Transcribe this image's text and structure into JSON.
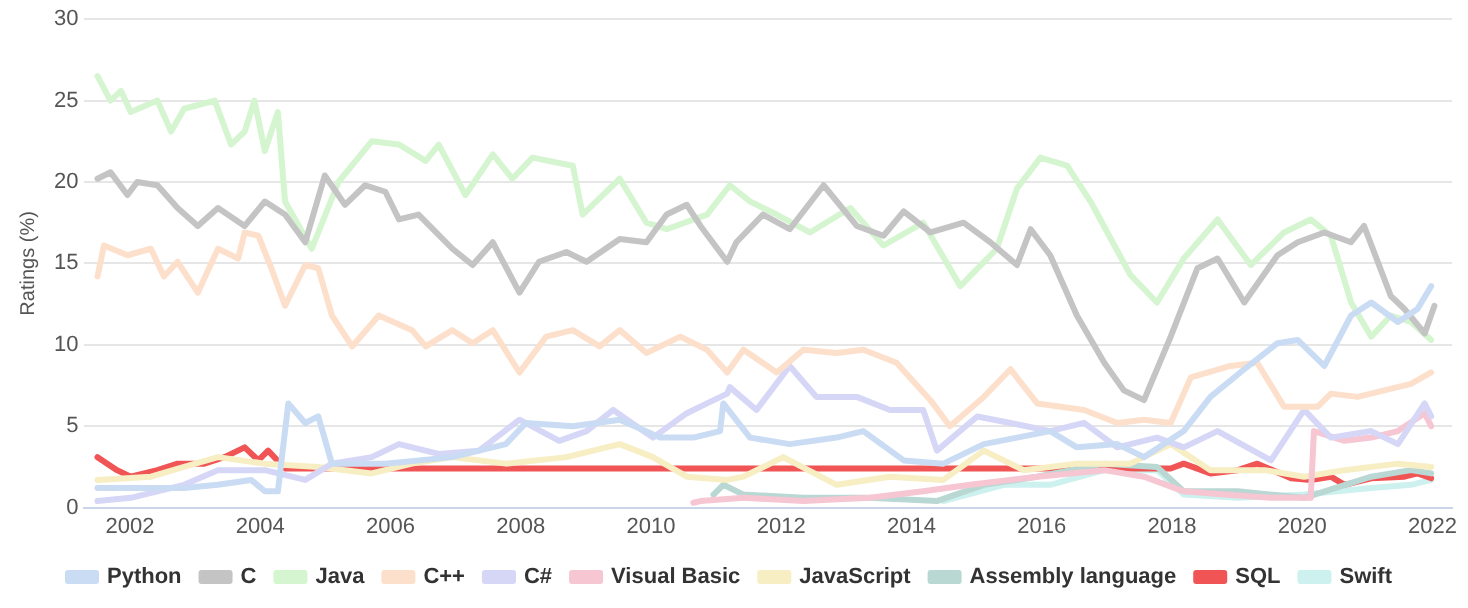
{
  "chart_data": {
    "type": "line",
    "ylabel": "Ratings (%)",
    "xlim": [
      2001.3,
      2022.3
    ],
    "xticks": [
      2002,
      2004,
      2006,
      2008,
      2010,
      2012,
      2014,
      2016,
      2018,
      2020,
      2022
    ],
    "ylim": [
      0,
      30
    ],
    "yticks": [
      0,
      5,
      10,
      15,
      20,
      25,
      30
    ],
    "grid": "y",
    "legend": "bottom",
    "marker": "none",
    "line_style": "solid",
    "series": [
      {
        "name": "Python",
        "color": "#c9dcf4",
        "x": [
          2001.5,
          2002.32,
          2002.83,
          2003.35,
          2003.86,
          2004.07,
          2004.27,
          2004.43,
          2004.69,
          2004.89,
          2005.1,
          2005.92,
          2006.95,
          2007.77,
          2008.08,
          2008.8,
          2009.52,
          2010.14,
          2010.65,
          2011.06,
          2011.11,
          2011.52,
          2012.13,
          2012.85,
          2013.26,
          2013.88,
          2014.49,
          2015.11,
          2015.62,
          2016.13,
          2016.54,
          2017.16,
          2017.57,
          2018.18,
          2018.59,
          2019.11,
          2019.62,
          2019.93,
          2020.34,
          2020.75,
          2021.06,
          2021.47,
          2021.77,
          2021.98
        ],
        "values": [
          1.2,
          1.2,
          1.2,
          1.4,
          1.7,
          1,
          1,
          6.4,
          5.2,
          5.6,
          2.7,
          2.7,
          3.1,
          3.9,
          5.2,
          5,
          5.4,
          4.3,
          4.3,
          4.7,
          6.4,
          4.3,
          3.9,
          4.3,
          4.7,
          2.9,
          2.7,
          3.9,
          4.3,
          4.7,
          3.7,
          3.9,
          3.1,
          4.7,
          6.8,
          8.5,
          10.1,
          10.3,
          8.7,
          11.8,
          12.6,
          11.4,
          12.2,
          13.6
        ]
      },
      {
        "name": "C",
        "color": "#c4c4c4",
        "x": [
          2001.5,
          2001.7,
          2001.96,
          2002.11,
          2002.42,
          2002.73,
          2003.04,
          2003.35,
          2003.76,
          2004.07,
          2004.38,
          2004.69,
          2004.99,
          2005.3,
          2005.61,
          2005.92,
          2006.13,
          2006.43,
          2006.95,
          2007.26,
          2007.57,
          2007.98,
          2008.28,
          2008.7,
          2009.01,
          2009.52,
          2009.93,
          2010.24,
          2010.55,
          2010.76,
          2011.17,
          2011.31,
          2011.72,
          2012.13,
          2012.65,
          2013.16,
          2013.57,
          2013.88,
          2014.29,
          2014.8,
          2015.21,
          2015.62,
          2015.83,
          2016.13,
          2016.54,
          2016.96,
          2017.26,
          2017.57,
          2017.98,
          2018.39,
          2018.7,
          2019.11,
          2019.62,
          2019.93,
          2020.34,
          2020.75,
          2020.95,
          2021.36,
          2021.57,
          2021.88,
          2022.03
        ],
        "values": [
          20.2,
          20.6,
          19.2,
          20,
          19.8,
          18.4,
          17.3,
          18.4,
          17.3,
          18.8,
          18,
          16.3,
          20.4,
          18.6,
          19.8,
          19.4,
          17.7,
          18,
          15.9,
          14.9,
          16.3,
          13.2,
          15.1,
          15.7,
          15.1,
          16.5,
          16.3,
          18,
          18.6,
          17.3,
          15.1,
          16.3,
          18,
          17.1,
          19.8,
          17.3,
          16.7,
          18.2,
          16.9,
          17.5,
          16.3,
          14.9,
          17.1,
          15.5,
          11.8,
          8.9,
          7.2,
          6.6,
          10.5,
          14.7,
          15.3,
          12.6,
          15.5,
          16.3,
          16.9,
          16.3,
          17.3,
          13,
          12.2,
          10.7,
          12.4
        ]
      },
      {
        "name": "Java",
        "color": "#d5f5d0",
        "x": [
          2001.5,
          2001.7,
          2001.86,
          2002.01,
          2002.42,
          2002.63,
          2002.83,
          2003.3,
          2003.55,
          2003.76,
          2003.91,
          2004.07,
          2004.27,
          2004.38,
          2004.79,
          2005.2,
          2005.71,
          2006.13,
          2006.54,
          2006.74,
          2007.15,
          2007.57,
          2007.87,
          2008.18,
          2008.8,
          2008.95,
          2009.52,
          2009.93,
          2010.24,
          2010.86,
          2011.21,
          2011.52,
          2011.93,
          2012.44,
          2013.06,
          2013.57,
          2014.18,
          2014.75,
          2015.31,
          2015.62,
          2015.98,
          2016.39,
          2016.75,
          2017.36,
          2017.77,
          2018.18,
          2018.7,
          2019.21,
          2019.72,
          2020.13,
          2020.44,
          2020.75,
          2021.06,
          2021.36,
          2021.67,
          2021.98
        ],
        "values": [
          26.5,
          25,
          25.6,
          24.3,
          25,
          23.1,
          24.5,
          25,
          22.3,
          23.1,
          25,
          21.9,
          24.3,
          18.8,
          15.9,
          20,
          22.5,
          22.3,
          21.3,
          22.3,
          19.2,
          21.7,
          20.2,
          21.5,
          21,
          18,
          20.2,
          17.5,
          17.1,
          18,
          19.8,
          18.8,
          18,
          16.9,
          18.4,
          16.1,
          17.5,
          13.6,
          15.9,
          19.6,
          21.5,
          21,
          18.8,
          14.3,
          12.6,
          15.3,
          17.7,
          14.9,
          16.9,
          17.7,
          16.7,
          12.6,
          10.5,
          11.8,
          11.4,
          10.3
        ]
      },
      {
        "name": "C++",
        "color": "#fde0cc",
        "x": [
          2001.5,
          2001.6,
          2001.96,
          2002.32,
          2002.52,
          2002.73,
          2003.04,
          2003.35,
          2003.66,
          2003.76,
          2003.97,
          2004.17,
          2004.38,
          2004.69,
          2004.89,
          2005.1,
          2005.41,
          2005.82,
          2006.33,
          2006.54,
          2006.95,
          2007.26,
          2007.57,
          2007.98,
          2008.39,
          2008.8,
          2009.21,
          2009.52,
          2009.93,
          2010.45,
          2010.86,
          2011.17,
          2011.42,
          2011.93,
          2012.34,
          2012.85,
          2013.26,
          2013.77,
          2014.29,
          2014.59,
          2015.11,
          2015.52,
          2015.93,
          2016.65,
          2017.16,
          2017.57,
          2017.98,
          2018.29,
          2018.9,
          2019.31,
          2019.72,
          2020.24,
          2020.44,
          2020.85,
          2021.26,
          2021.67,
          2021.98
        ],
        "values": [
          14.2,
          16.1,
          15.5,
          15.9,
          14.2,
          15.1,
          13.2,
          15.9,
          15.3,
          16.9,
          16.7,
          14.7,
          12.4,
          14.9,
          14.7,
          11.8,
          9.9,
          11.8,
          10.9,
          9.9,
          10.9,
          10.1,
          10.9,
          8.3,
          10.5,
          10.9,
          9.9,
          10.9,
          9.5,
          10.5,
          9.7,
          8.3,
          9.7,
          8.3,
          9.7,
          9.5,
          9.7,
          8.9,
          6.6,
          5,
          6.8,
          8.5,
          6.4,
          6,
          5.2,
          5.4,
          5.2,
          8,
          8.7,
          8.9,
          6.2,
          6.2,
          7,
          6.8,
          7.2,
          7.6,
          8.3
        ]
      },
      {
        "name": "C#",
        "color": "#d6d6f7",
        "x": [
          2001.5,
          2002.01,
          2002.83,
          2003.35,
          2004.07,
          2004.69,
          2005.1,
          2005.71,
          2006.13,
          2006.74,
          2007.36,
          2007.98,
          2008.59,
          2009.01,
          2009.42,
          2010.03,
          2010.55,
          2010.86,
          2011.17,
          2011.21,
          2011.62,
          2012.13,
          2012.54,
          2013.16,
          2013.67,
          2014.18,
          2014.39,
          2015.01,
          2015.52,
          2016.13,
          2016.65,
          2017.16,
          2017.77,
          2018.18,
          2018.7,
          2019.52,
          2020.03,
          2020.44,
          2021.06,
          2021.47,
          2021.88,
          2021.98
        ],
        "values": [
          0.4,
          0.6,
          1.4,
          2.3,
          2.3,
          1.7,
          2.7,
          3.1,
          3.9,
          3.3,
          3.5,
          5.4,
          4.1,
          4.7,
          6,
          4.3,
          5.8,
          6.4,
          7,
          7.4,
          6,
          8.7,
          6.8,
          6.8,
          6,
          6,
          3.5,
          5.6,
          5.2,
          4.7,
          5.2,
          3.7,
          4.3,
          3.7,
          4.7,
          2.9,
          6,
          4.3,
          4.7,
          3.9,
          6.4,
          5.6
        ]
      },
      {
        "name": "Visual Basic",
        "color": "#f6c6d2",
        "x": [
          2010.65,
          2010.76,
          2011.42,
          2012.34,
          2013.36,
          2014.18,
          2014.9,
          2015.93,
          2016.96,
          2017.57,
          2018.18,
          2018.8,
          2019.52,
          2020.13,
          2020.18,
          2020.65,
          2021.06,
          2021.47,
          2021.88,
          2021.98
        ],
        "values": [
          0.3,
          0.4,
          0.6,
          0.4,
          0.6,
          1,
          1.4,
          1.9,
          2.3,
          1.9,
          1,
          0.8,
          0.6,
          0.6,
          4.7,
          4.1,
          4.3,
          4.7,
          5.8,
          5
        ]
      },
      {
        "name": "JavaScript",
        "color": "#f7eec3",
        "x": [
          2001.5,
          2002.32,
          2002.83,
          2003.35,
          2004.07,
          2004.89,
          2005.71,
          2006.33,
          2006.95,
          2007.77,
          2008.7,
          2009.52,
          2010.03,
          2010.55,
          2011.17,
          2011.42,
          2012.03,
          2012.85,
          2013.67,
          2014.49,
          2015.11,
          2015.72,
          2016.54,
          2017.36,
          2017.98,
          2018.59,
          2019.42,
          2020.03,
          2020.65,
          2021.47,
          2021.98
        ],
        "values": [
          1.7,
          1.9,
          2.5,
          3.1,
          2.7,
          2.5,
          2.1,
          2.7,
          3.1,
          2.7,
          3.1,
          3.9,
          3.1,
          1.9,
          1.7,
          1.9,
          3.1,
          1.4,
          1.9,
          1.7,
          3.5,
          2.3,
          2.7,
          2.7,
          3.9,
          2.3,
          2.3,
          1.9,
          2.3,
          2.7,
          2.5
        ]
      },
      {
        "name": "Assembly language",
        "color": "#b9d7d3",
        "x": [
          2010.96,
          2011.11,
          2011.42,
          2012.34,
          2013.36,
          2014.39,
          2015.11,
          2015.93,
          2016.96,
          2017.77,
          2018.18,
          2019.01,
          2020.03,
          2021.06,
          2021.67,
          2021.98
        ],
        "values": [
          0.8,
          1.4,
          0.8,
          0.6,
          0.6,
          0.4,
          1.4,
          1.9,
          2.7,
          2.5,
          1,
          1,
          0.6,
          1.9,
          2.3,
          2.1
        ]
      },
      {
        "name": "SQL",
        "color": "#f05454",
        "x": [
          2001.5,
          2001.8,
          2002.01,
          2002.42,
          2002.73,
          2003.14,
          2003.45,
          2003.76,
          2003.97,
          2004.12,
          2004.38,
          2017.98,
          2018.18,
          2018.59,
          2019.01,
          2019.31,
          2019.83,
          2020.13,
          2020.44,
          2020.65,
          2021.06,
          2021.57,
          2021.77,
          2021.98
        ],
        "values": [
          3.1,
          2.3,
          1.9,
          2.3,
          2.7,
          2.7,
          3.1,
          3.7,
          2.9,
          3.5,
          2.4,
          2.4,
          2.7,
          2.1,
          2.3,
          2.7,
          1.8,
          1.7,
          1.9,
          1.4,
          1.8,
          1.9,
          2.1,
          1.8
        ]
      },
      {
        "name": "Swift",
        "color": "#cdf1ee",
        "x": [
          2014.49,
          2015.42,
          2016.13,
          2016.96,
          2017.77,
          2018.18,
          2019.01,
          2020.03,
          2021.06,
          2021.67,
          2021.98
        ],
        "values": [
          0.4,
          1.4,
          1.4,
          2.3,
          2.3,
          0.8,
          0.6,
          0.8,
          1.2,
          1.4,
          1.7
        ]
      }
    ]
  }
}
